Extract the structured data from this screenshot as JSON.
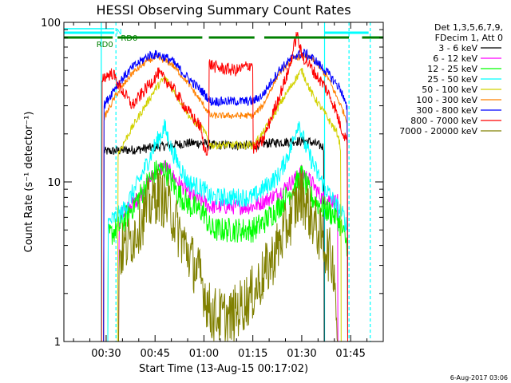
{
  "chart_data": {
    "type": "line",
    "title": "HESSI Observing Summary Count Rates",
    "xlabel": "Start Time (13-Aug-15 00:17:02)",
    "ylabel": "Count Rate (s⁻¹ detector⁻¹)",
    "y_scale": "log",
    "ylim": [
      1,
      100
    ],
    "xlim_minutes_of_day": [
      17.03,
      115.0
    ],
    "x_ticks": [
      {
        "t": 30,
        "label": "00:30"
      },
      {
        "t": 45,
        "label": "00:45"
      },
      {
        "t": 60,
        "label": "01:00"
      },
      {
        "t": 75,
        "label": "01:15"
      },
      {
        "t": 90,
        "label": "01:30"
      },
      {
        "t": 105,
        "label": "01:45"
      }
    ],
    "y_ticks": [
      {
        "v": 1,
        "label": "1"
      },
      {
        "v": 10,
        "label": "10"
      },
      {
        "v": 100,
        "label": "100"
      }
    ],
    "legend_header": [
      "Det 1,3,5,6,7,9,",
      "FDecim 1, Att 0"
    ],
    "legend_position": "right",
    "timestamp": "6-Aug-2017 03:06",
    "flags": [
      {
        "label": "N",
        "color": "#00ffff",
        "segments": [
          [
            17.03,
            32.5
          ],
          [
            97.0,
            110.5
          ]
        ]
      },
      {
        "label": "RD0",
        "color": "#008000",
        "segments": [
          [
            17.03,
            32.0
          ],
          [
            33.5,
            59.5
          ],
          [
            61.5,
            75.5
          ],
          [
            78.5,
            104.5
          ],
          [
            108.5,
            115.0
          ]
        ]
      }
    ],
    "flag_labels": [
      {
        "text": "N",
        "t": 33.0,
        "color": "#00ffff"
      },
      {
        "text": "RD0",
        "t": 34.5,
        "color": "#008000"
      },
      {
        "text": "RD0",
        "t": 27.0,
        "color": "#008000"
      }
    ],
    "data_gaps": [
      {
        "t": 28.5,
        "color": "#00ffff",
        "dashed": false
      },
      {
        "t": 33.0,
        "color": "#00ffff",
        "dashed": true
      },
      {
        "t": 97.0,
        "color": "#00ffff",
        "dashed": false
      },
      {
        "t": 104.5,
        "color": "#00ffff",
        "dashed": true
      },
      {
        "t": 111.0,
        "color": "#00ffff",
        "dashed": true
      }
    ],
    "series": [
      {
        "name": "3 - 6 keV",
        "color": "#000000",
        "noise": 0.03,
        "points": [
          [
            29.2,
            1
          ],
          [
            29.3,
            15.5
          ],
          [
            40,
            16
          ],
          [
            50,
            17
          ],
          [
            55,
            17.5
          ],
          [
            60,
            17.5
          ],
          [
            62,
            17
          ],
          [
            75,
            17
          ],
          [
            80,
            17.5
          ],
          [
            88,
            18
          ],
          [
            92,
            18
          ],
          [
            96.8,
            16.5
          ],
          [
            96.9,
            1
          ]
        ]
      },
      {
        "name": "6 - 12 keV",
        "color": "#ff00ff",
        "noise": 0.05,
        "points": [
          [
            33.8,
            1
          ],
          [
            34,
            6
          ],
          [
            40,
            8
          ],
          [
            45,
            11.5
          ],
          [
            48,
            12.5
          ],
          [
            52,
            10
          ],
          [
            57,
            8
          ],
          [
            60,
            7.5
          ],
          [
            62,
            7
          ],
          [
            75,
            7
          ],
          [
            78,
            7.5
          ],
          [
            83,
            8.5
          ],
          [
            88,
            10.5
          ],
          [
            90,
            11.5
          ],
          [
            93,
            10
          ],
          [
            96,
            8
          ],
          [
            101,
            7.5
          ],
          [
            101.1,
            1
          ]
        ]
      },
      {
        "name": "12 - 25 keV",
        "color": "#00ff00",
        "noise": 0.08,
        "points": [
          [
            30.5,
            1
          ],
          [
            30.6,
            4.5
          ],
          [
            35,
            5.5
          ],
          [
            40,
            8
          ],
          [
            45,
            11.5
          ],
          [
            48,
            12
          ],
          [
            52,
            8.5
          ],
          [
            56,
            7
          ],
          [
            60,
            6.5
          ],
          [
            62,
            5
          ],
          [
            75,
            5
          ],
          [
            78,
            5.5
          ],
          [
            83,
            7
          ],
          [
            88,
            9.5
          ],
          [
            90,
            11
          ],
          [
            93,
            8
          ],
          [
            96,
            7
          ],
          [
            101,
            6
          ],
          [
            104,
            4
          ],
          [
            104.1,
            1
          ]
        ]
      },
      {
        "name": "25 - 50 keV",
        "color": "#00ffff",
        "noise": 0.06,
        "points": [
          [
            30.5,
            1
          ],
          [
            30.6,
            5.5
          ],
          [
            35,
            6.5
          ],
          [
            40,
            10
          ],
          [
            45,
            17
          ],
          [
            48,
            22
          ],
          [
            50,
            16
          ],
          [
            55,
            10
          ],
          [
            60,
            9
          ],
          [
            62,
            8
          ],
          [
            75,
            8
          ],
          [
            78,
            9
          ],
          [
            83,
            11
          ],
          [
            87,
            17
          ],
          [
            89,
            24
          ],
          [
            91,
            17
          ],
          [
            95,
            11
          ],
          [
            99,
            8
          ],
          [
            103,
            6
          ],
          [
            104,
            5
          ],
          [
            104.1,
            1
          ]
        ]
      },
      {
        "name": "50 - 100 keV",
        "color": "#d2d200",
        "noise": 0.025,
        "points": [
          [
            33.5,
            1
          ],
          [
            33.6,
            15
          ],
          [
            38,
            22
          ],
          [
            45,
            38
          ],
          [
            48,
            45
          ],
          [
            52,
            34
          ],
          [
            56,
            25
          ],
          [
            60,
            21
          ],
          [
            62,
            17
          ],
          [
            75,
            17
          ],
          [
            78,
            20
          ],
          [
            83,
            30
          ],
          [
            88,
            44
          ],
          [
            90,
            50
          ],
          [
            93,
            36
          ],
          [
            97,
            27
          ],
          [
            101,
            20
          ],
          [
            102,
            16
          ],
          [
            102.1,
            1
          ]
        ]
      },
      {
        "name": "100 - 300 keV",
        "color": "#ff8000",
        "noise": 0.02,
        "points": [
          [
            29.2,
            1
          ],
          [
            29.3,
            25
          ],
          [
            33,
            35
          ],
          [
            38,
            48
          ],
          [
            43,
            58
          ],
          [
            46,
            60
          ],
          [
            50,
            55
          ],
          [
            55,
            42
          ],
          [
            60,
            30
          ],
          [
            62,
            26
          ],
          [
            75,
            26
          ],
          [
            78,
            30
          ],
          [
            83,
            48
          ],
          [
            88,
            60
          ],
          [
            91,
            62
          ],
          [
            94,
            57
          ],
          [
            98,
            45
          ],
          [
            102,
            30
          ],
          [
            104,
            24
          ],
          [
            104.1,
            1
          ]
        ]
      },
      {
        "name": "300 - 800 keV",
        "color": "#0000ff",
        "noise": 0.03,
        "points": [
          [
            29.2,
            1
          ],
          [
            29.3,
            30
          ],
          [
            33,
            40
          ],
          [
            38,
            52
          ],
          [
            43,
            62
          ],
          [
            46,
            63
          ],
          [
            50,
            58
          ],
          [
            55,
            45
          ],
          [
            60,
            36
          ],
          [
            62,
            32
          ],
          [
            75,
            32
          ],
          [
            78,
            35
          ],
          [
            83,
            50
          ],
          [
            88,
            62
          ],
          [
            91,
            64
          ],
          [
            94,
            58
          ],
          [
            98,
            48
          ],
          [
            102,
            38
          ],
          [
            104,
            28
          ],
          [
            104.1,
            1
          ]
        ]
      },
      {
        "name": "800 - 7000 keV",
        "color": "#ff0000",
        "noise": 0.04,
        "points": [
          [
            28.6,
            1
          ],
          [
            28.7,
            45
          ],
          [
            32,
            48
          ],
          [
            34,
            40
          ],
          [
            38,
            30
          ],
          [
            42,
            38
          ],
          [
            46,
            48
          ],
          [
            50,
            40
          ],
          [
            55,
            28
          ],
          [
            59,
            22
          ],
          [
            60,
            16
          ],
          [
            61.5,
            16
          ],
          [
            61.6,
            55
          ],
          [
            64,
            52
          ],
          [
            70,
            50
          ],
          [
            75,
            55
          ],
          [
            75.1,
            16
          ],
          [
            78,
            18
          ],
          [
            82,
            30
          ],
          [
            86,
            50
          ],
          [
            88.5,
            85
          ],
          [
            90,
            62
          ],
          [
            92,
            55
          ],
          [
            95,
            45
          ],
          [
            97,
            40
          ],
          [
            100,
            30
          ],
          [
            102,
            22
          ],
          [
            104,
            18
          ],
          [
            104.1,
            1
          ]
        ]
      },
      {
        "name": "7000 - 20000 keV",
        "color": "#808000",
        "noise": 0.18,
        "points": [
          [
            33.8,
            1
          ],
          [
            33.9,
            3.5
          ],
          [
            38,
            4.5
          ],
          [
            43,
            7
          ],
          [
            46,
            8.5
          ],
          [
            50,
            6.5
          ],
          [
            53,
            4.5
          ],
          [
            57,
            3
          ],
          [
            59,
            2.5
          ],
          [
            62,
            1.5
          ],
          [
            68,
            1.4
          ],
          [
            75,
            2
          ],
          [
            80,
            3
          ],
          [
            84,
            4.5
          ],
          [
            88,
            7
          ],
          [
            90,
            8.5
          ],
          [
            93,
            6
          ],
          [
            97,
            4
          ],
          [
            100,
            3
          ],
          [
            101,
            1
          ]
        ]
      }
    ]
  }
}
